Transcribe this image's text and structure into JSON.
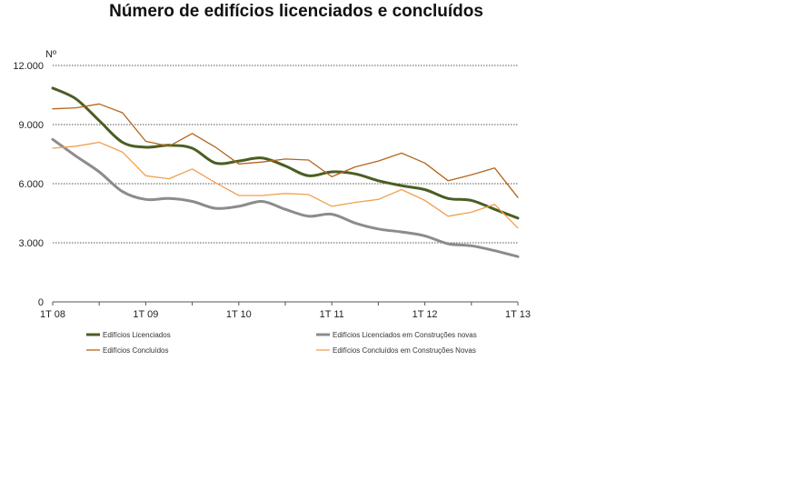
{
  "chart_data": {
    "type": "line",
    "title": "Número de edifícios licenciados e concluídos",
    "ylabel": "Nº",
    "xlabel": "",
    "ylim": [
      0,
      12000
    ],
    "y_ticks": [
      0,
      3000,
      6000,
      9000,
      12000
    ],
    "y_tick_labels": [
      "0",
      "3.000",
      "6.000",
      "9.000",
      "12.000"
    ],
    "x_tick_labels": [
      {
        "index": 0,
        "label": "1T 08"
      },
      {
        "index": 4,
        "label": "1T 09"
      },
      {
        "index": 8,
        "label": "1T 10"
      },
      {
        "index": 12,
        "label": "1T 11"
      },
      {
        "index": 16,
        "label": "1T 12"
      },
      {
        "index": 20,
        "label": "1T 13"
      }
    ],
    "n_points": 21,
    "grid": "horizontal dotted",
    "legend_position": "bottom",
    "series": [
      {
        "name": "Edifícios Licenciados",
        "color": "#4a5e23",
        "width": 3,
        "values": [
          10850,
          10300,
          9200,
          8100,
          7850,
          7950,
          7800,
          7050,
          7150,
          7300,
          6900,
          6400,
          6600,
          6500,
          6150,
          5900,
          5700,
          5250,
          5150,
          4700,
          4250
        ]
      },
      {
        "name": "Edifícios Licenciados em Construções novas",
        "color": "#8c8c8c",
        "width": 3,
        "values": [
          8250,
          7400,
          6600,
          5600,
          5200,
          5250,
          5100,
          4750,
          4850,
          5100,
          4700,
          4350,
          4450,
          4000,
          3700,
          3550,
          3350,
          2950,
          2850,
          2600,
          2300
        ]
      },
      {
        "name": "Edifícios Concluídos",
        "color": "#b5651d",
        "width": 1.3,
        "values": [
          9800,
          9850,
          10050,
          9600,
          8150,
          7900,
          8550,
          7850,
          7000,
          7100,
          7250,
          7200,
          6350,
          6850,
          7150,
          7550,
          7050,
          6150,
          6450,
          6800,
          5300
        ]
      },
      {
        "name": "Edifícios Concluídos em Construções Novas",
        "color": "#f0a050",
        "width": 1.3,
        "values": [
          7800,
          7900,
          8100,
          7600,
          6400,
          6250,
          6750,
          6050,
          5400,
          5400,
          5500,
          5450,
          4850,
          5050,
          5200,
          5700,
          5150,
          4350,
          4550,
          4950,
          3750
        ]
      }
    ]
  }
}
